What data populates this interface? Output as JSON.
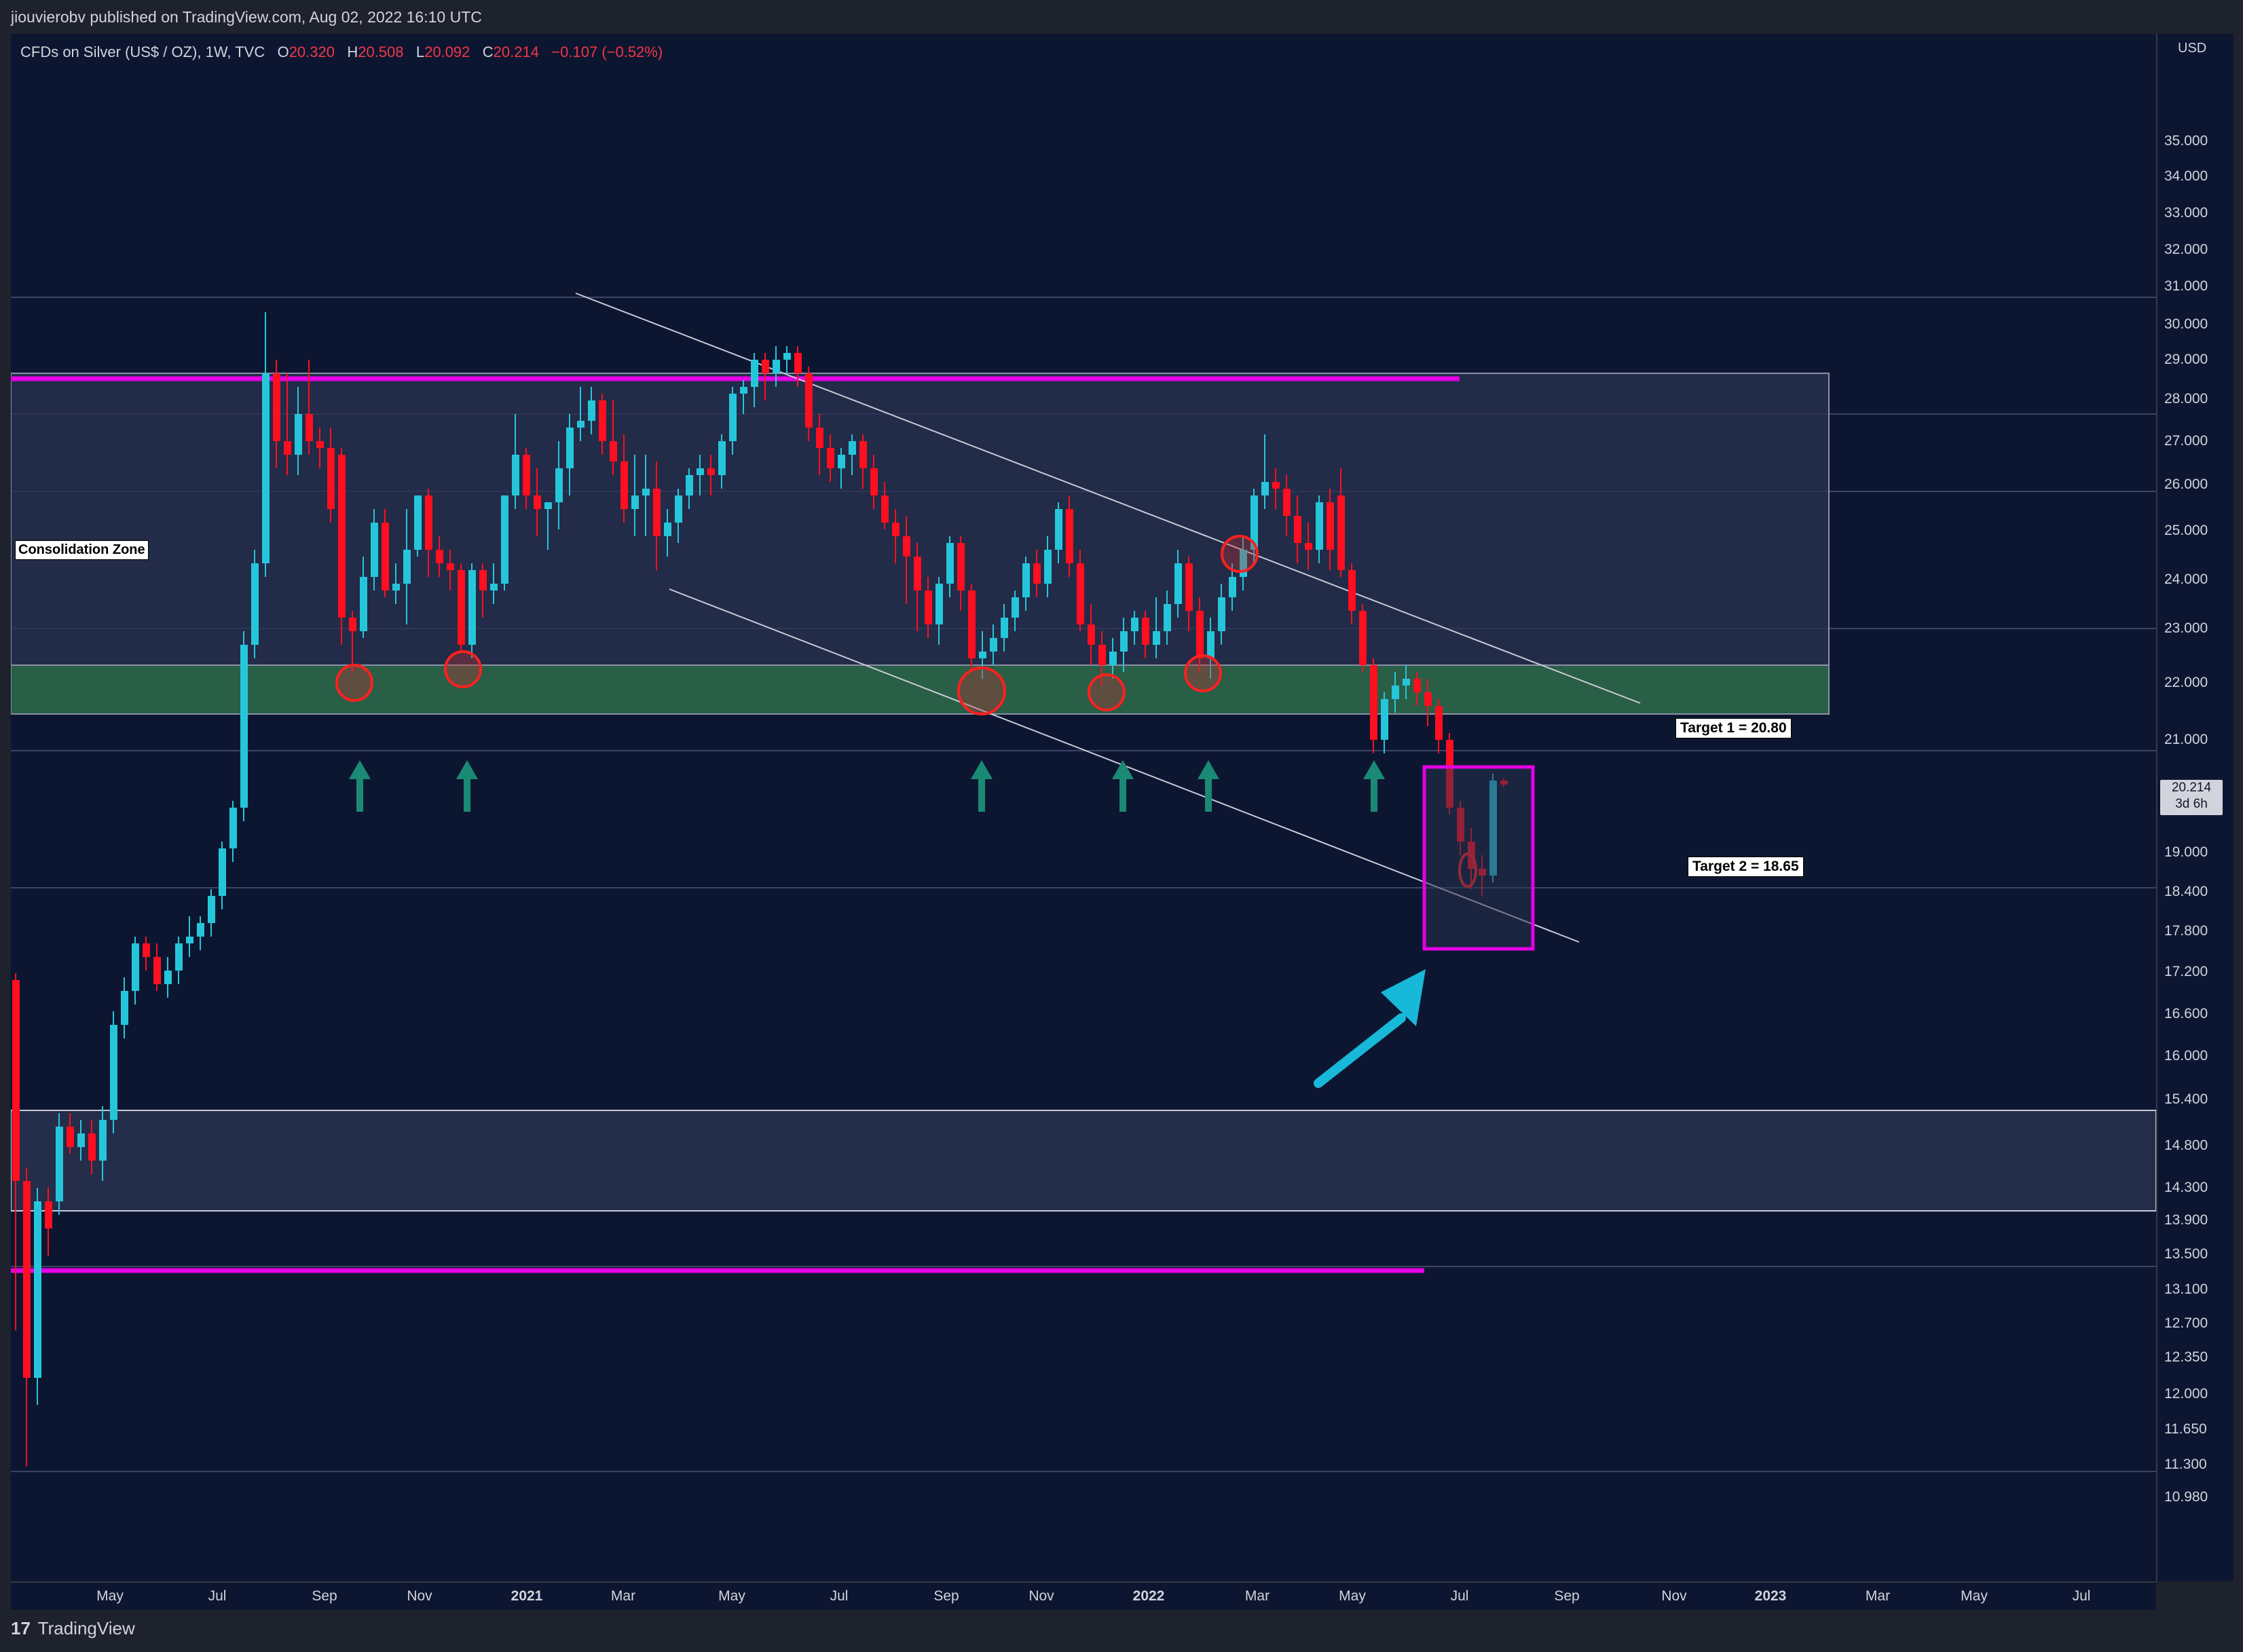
{
  "header": {
    "published_by": "jiouvierobv published on TradingView.com, Aug 02, 2022 16:10 UTC"
  },
  "legend": {
    "symbol": "CFDs on Silver (US$ / OZ), 1W, TVC",
    "o_label": "O",
    "o": "20.320",
    "h_label": "H",
    "h": "20.508",
    "l_label": "L",
    "l": "20.092",
    "c_label": "C",
    "c": "20.214",
    "change": "−0.107 (−0.52%)"
  },
  "price_axis": {
    "unit": "USD",
    "labels": [
      "35.000",
      "34.000",
      "33.000",
      "32.000",
      "31.000",
      "30.000",
      "29.000",
      "28.000",
      "27.000",
      "26.000",
      "25.000",
      "24.000",
      "23.000",
      "22.000",
      "21.000",
      "19.000",
      "18.400",
      "17.800",
      "17.200",
      "16.600",
      "16.000",
      "15.400",
      "14.800",
      "14.300",
      "13.900",
      "13.500",
      "13.100",
      "12.700",
      "12.350",
      "12.000",
      "11.650",
      "11.300",
      "10.980"
    ],
    "current_price": "20.214",
    "current_countdown": "3d 6h"
  },
  "time_axis": {
    "labels": [
      "May",
      "Jul",
      "Sep",
      "Nov",
      "2021",
      "Mar",
      "May",
      "Jul",
      "Sep",
      "Nov",
      "2022",
      "Mar",
      "May",
      "Jul",
      "Sep",
      "Nov",
      "2023",
      "Mar",
      "May",
      "Jul"
    ],
    "bold": [
      "2021",
      "2022",
      "2023"
    ]
  },
  "annotations": {
    "consolidation_zone": "Consolidation Zone",
    "target_1": "Target 1 = 20.80",
    "target_2": "Target 2 = 18.65"
  },
  "colors": {
    "background": "#0d1631",
    "bull": "#26c6da",
    "bear": "#ff0f1f",
    "magenta": "#e600e6",
    "green_zone": "#2e6b4a",
    "arrow_cyan": "#18b8d8",
    "arrow_teal": "#1a8a74"
  },
  "footer": {
    "brand": "TradingView",
    "logo": "17"
  }
}
